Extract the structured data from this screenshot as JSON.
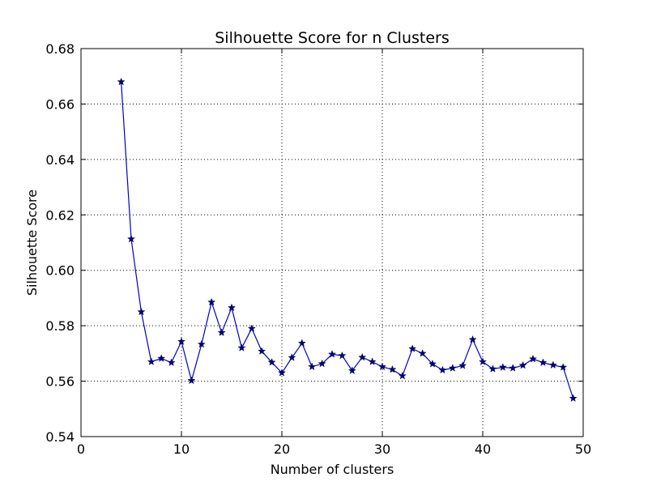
{
  "chart_data": {
    "type": "line",
    "title": "Silhouette Score for n Clusters",
    "xlabel": "Number of clusters",
    "ylabel": "Silhouette Score",
    "xlim": [
      0,
      50
    ],
    "ylim": [
      0.54,
      0.68
    ],
    "xticks": [
      "0",
      "10",
      "20",
      "30",
      "40",
      "50"
    ],
    "yticks": [
      "0.54",
      "0.56",
      "0.58",
      "0.60",
      "0.62",
      "0.64",
      "0.66",
      "0.68"
    ],
    "grid": true,
    "marker": "star",
    "color": "#0000cc",
    "x": [
      4,
      5,
      6,
      7,
      8,
      9,
      10,
      11,
      12,
      13,
      14,
      15,
      16,
      17,
      18,
      19,
      20,
      21,
      22,
      23,
      24,
      25,
      26,
      27,
      28,
      29,
      30,
      31,
      32,
      33,
      34,
      35,
      36,
      37,
      38,
      39,
      40,
      41,
      42,
      43,
      44,
      45,
      46,
      47,
      48,
      49
    ],
    "y": [
      0.668,
      0.6113,
      0.585,
      0.567,
      0.5682,
      0.5667,
      0.5743,
      0.5602,
      0.5733,
      0.5885,
      0.5775,
      0.5865,
      0.572,
      0.579,
      0.5708,
      0.5668,
      0.563,
      0.5685,
      0.5737,
      0.5652,
      0.5663,
      0.5697,
      0.5692,
      0.5638,
      0.5686,
      0.567,
      0.5652,
      0.5642,
      0.5619,
      0.5717,
      0.57,
      0.5662,
      0.564,
      0.5647,
      0.5656,
      0.575,
      0.567,
      0.5644,
      0.565,
      0.5647,
      0.5657,
      0.568,
      0.5667,
      0.5658,
      0.565,
      0.5538
    ]
  }
}
